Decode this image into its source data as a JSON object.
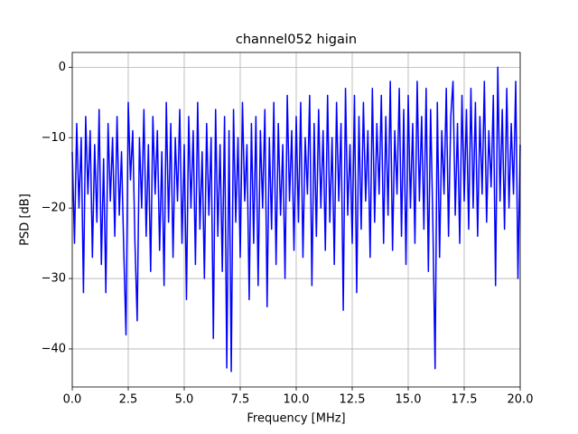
{
  "chart_data": {
    "type": "line",
    "title": "channel052 higain",
    "xlabel": "Frequency [MHz]",
    "ylabel": "PSD [dB]",
    "color": "blue",
    "grid": true,
    "xlim": [
      0,
      20
    ],
    "ylim": [
      -45.4,
      2.1
    ],
    "xticks": [
      {
        "value": 0,
        "label": "0.0"
      },
      {
        "value": 2.5,
        "label": "2.5"
      },
      {
        "value": 5,
        "label": "5.0"
      },
      {
        "value": 7.5,
        "label": "7.5"
      },
      {
        "value": 10,
        "label": "10.0"
      },
      {
        "value": 12.5,
        "label": "12.5"
      },
      {
        "value": 15,
        "label": "15.0"
      },
      {
        "value": 17.5,
        "label": "17.5"
      },
      {
        "value": 20,
        "label": "20.0"
      }
    ],
    "yticks": [
      {
        "value": -40,
        "label": "−40"
      },
      {
        "value": -30,
        "label": "−30"
      },
      {
        "value": -20,
        "label": "−20"
      },
      {
        "value": -10,
        "label": "−10"
      },
      0
    ],
    "x": [
      0,
      0.1,
      0.2,
      0.3,
      0.4,
      0.5,
      0.6,
      0.7,
      0.8,
      0.9,
      1,
      1.1,
      1.2,
      1.3,
      1.4,
      1.5,
      1.6,
      1.7,
      1.8,
      1.9,
      2,
      2.1,
      2.2,
      2.3,
      2.4,
      2.5,
      2.6,
      2.7,
      2.8,
      2.9,
      3,
      3.1,
      3.2,
      3.3,
      3.4,
      3.5,
      3.6,
      3.7,
      3.8,
      3.9,
      4,
      4.1,
      4.2,
      4.3,
      4.4,
      4.5,
      4.6,
      4.7,
      4.8,
      4.9,
      5,
      5.1,
      5.2,
      5.3,
      5.4,
      5.5,
      5.6,
      5.7,
      5.8,
      5.9,
      6,
      6.1,
      6.2,
      6.3,
      6.4,
      6.5,
      6.6,
      6.7,
      6.8,
      6.9,
      7,
      7.1,
      7.2,
      7.3,
      7.4,
      7.5,
      7.6,
      7.7,
      7.8,
      7.9,
      8,
      8.1,
      8.2,
      8.3,
      8.4,
      8.5,
      8.6,
      8.7,
      8.8,
      8.9,
      9,
      9.1,
      9.2,
      9.3,
      9.4,
      9.5,
      9.6,
      9.7,
      9.8,
      9.9,
      10,
      10.1,
      10.2,
      10.3,
      10.4,
      10.5,
      10.6,
      10.7,
      10.8,
      10.9,
      11,
      11.1,
      11.2,
      11.3,
      11.4,
      11.5,
      11.6,
      11.7,
      11.8,
      11.9,
      12,
      12.1,
      12.2,
      12.3,
      12.4,
      12.5,
      12.6,
      12.7,
      12.8,
      12.9,
      13,
      13.1,
      13.2,
      13.3,
      13.4,
      13.5,
      13.6,
      13.7,
      13.8,
      13.9,
      14,
      14.1,
      14.2,
      14.3,
      14.4,
      14.5,
      14.6,
      14.7,
      14.8,
      14.9,
      15,
      15.1,
      15.2,
      15.3,
      15.4,
      15.5,
      15.6,
      15.7,
      15.8,
      15.9,
      16,
      16.1,
      16.2,
      16.3,
      16.4,
      16.5,
      16.6,
      16.7,
      16.8,
      16.9,
      17,
      17.1,
      17.2,
      17.3,
      17.4,
      17.5,
      17.6,
      17.7,
      17.8,
      17.9,
      18,
      18.1,
      18.2,
      18.3,
      18.4,
      18.5,
      18.6,
      18.7,
      18.8,
      18.9,
      19,
      19.1,
      19.2,
      19.3,
      19.4,
      19.5,
      19.6,
      19.7,
      19.8,
      19.9,
      20
    ],
    "values": [
      -12,
      -25,
      -8,
      -20,
      -10,
      -32,
      -7,
      -18,
      -9,
      -27,
      -11,
      -22,
      -6,
      -28,
      -13,
      -32,
      -8,
      -19,
      -10,
      -24,
      -7,
      -21,
      -12,
      -26,
      -38,
      -5,
      -16,
      -9,
      -25,
      -36,
      -10,
      -20,
      -6,
      -24,
      -11,
      -29,
      -7,
      -18,
      -9,
      -26,
      -12,
      -31,
      -5,
      -22,
      -8,
      -27,
      -10,
      -19,
      -6,
      -25,
      -11,
      -33,
      -7,
      -20,
      -9,
      -28,
      -5,
      -23,
      -12,
      -30,
      -8,
      -21,
      -10,
      -38.5,
      -6,
      -24,
      -11,
      -29,
      -7,
      -42.7,
      -9,
      -43.2,
      -6,
      -22,
      -10,
      -27,
      -5,
      -19,
      -11,
      -33,
      -8,
      -25,
      -7,
      -31,
      -9,
      -20,
      -6,
      -34,
      -10,
      -23,
      -5,
      -28,
      -8,
      -21,
      -11,
      -30,
      -4,
      -19,
      -9,
      -26,
      -7,
      -22,
      -5,
      -27,
      -10,
      -18,
      -4,
      -31,
      -8,
      -24,
      -6,
      -20,
      -9,
      -26,
      -4,
      -22,
      -10,
      -28,
      -5,
      -19,
      -8,
      -34.5,
      -3,
      -21,
      -11,
      -25,
      -4,
      -32,
      -7,
      -23,
      -5,
      -19,
      -9,
      -27,
      -3,
      -22,
      -8,
      -18,
      -4,
      -25,
      -7,
      -21,
      -2,
      -26,
      -9,
      -18,
      -3,
      -24,
      -6,
      -28,
      -4,
      -20,
      -8,
      -25,
      -2,
      -19,
      -7,
      -23,
      -3,
      -29,
      -6,
      -22,
      -42.8,
      -5,
      -27,
      -9,
      -18,
      -3,
      -24,
      -7,
      -2,
      -21,
      -8,
      -25,
      -4,
      -19,
      -6,
      -23,
      -3,
      -20,
      -5,
      -24,
      -7,
      -18,
      -2,
      -22,
      -9,
      -17,
      -4,
      -31,
      0,
      -19,
      -6,
      -23,
      -3,
      -20,
      -8,
      -18,
      -2,
      -30,
      -11
    ]
  }
}
